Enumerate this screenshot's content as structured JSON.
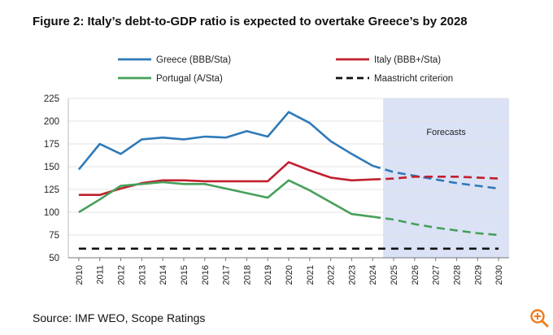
{
  "figure": {
    "title": "Figure 2: Italy’s debt-to-GDP ratio is expected to overtake Greece’s by 2028",
    "source": "Source: IMF WEO, Scope Ratings",
    "zoom_icon": "zoom-in-icon"
  },
  "chart_data": {
    "type": "line",
    "title": "Figure 2: Italy’s debt-to-GDP ratio is expected to overtake Greece’s by 2028",
    "xlabel": "",
    "ylabel": "",
    "ylim": [
      50,
      225
    ],
    "yticks": [
      50,
      75,
      100,
      125,
      150,
      175,
      200,
      225
    ],
    "x": [
      2010,
      2011,
      2012,
      2013,
      2014,
      2015,
      2016,
      2017,
      2018,
      2019,
      2020,
      2021,
      2022,
      2023,
      2024,
      2025,
      2026,
      2027,
      2028,
      2029,
      2030
    ],
    "x_labels": [
      "2010",
      "2011",
      "2012",
      "2013",
      "2014",
      "2015",
      "2016",
      "2017",
      "2018",
      "2019",
      "2020",
      "2021",
      "2022",
      "2023",
      "2024",
      "2025",
      "2026",
      "2027",
      "2028",
      "2029",
      "2030"
    ],
    "grid": "horizontal",
    "legend_position": "top",
    "forecast_region": {
      "from": 2025,
      "to": 2030,
      "label": "Forecasts",
      "color": "#dbe2f6"
    },
    "series": [
      {
        "name": "Greece (BBB/Sta)",
        "color": "#2f7ab8",
        "values": [
          147,
          175,
          164,
          180,
          182,
          180,
          183,
          182,
          189,
          183,
          210,
          198,
          178,
          164,
          151,
          144,
          140,
          136,
          132,
          129,
          126
        ],
        "forecast_from": 2024
      },
      {
        "name": "Italy (BBB+/Sta)",
        "color": "#c0202e",
        "values": [
          119,
          119,
          126,
          132,
          135,
          135,
          134,
          134,
          134,
          134,
          155,
          146,
          138,
          135,
          136,
          137,
          139,
          139,
          139,
          138,
          137
        ],
        "forecast_from": 2024
      },
      {
        "name": "Portugal (A/Sta)",
        "color": "#46a05a",
        "values": [
          100,
          114,
          129,
          131,
          133,
          131,
          131,
          126,
          121,
          116,
          135,
          124,
          111,
          98,
          95,
          92,
          87,
          83,
          80,
          77,
          75
        ],
        "forecast_from": 2024
      },
      {
        "name": "Maastricht criterion",
        "color": "#111111",
        "dashed": true,
        "values": [
          60,
          60,
          60,
          60,
          60,
          60,
          60,
          60,
          60,
          60,
          60,
          60,
          60,
          60,
          60,
          60,
          60,
          60,
          60,
          60,
          60
        ]
      }
    ]
  }
}
